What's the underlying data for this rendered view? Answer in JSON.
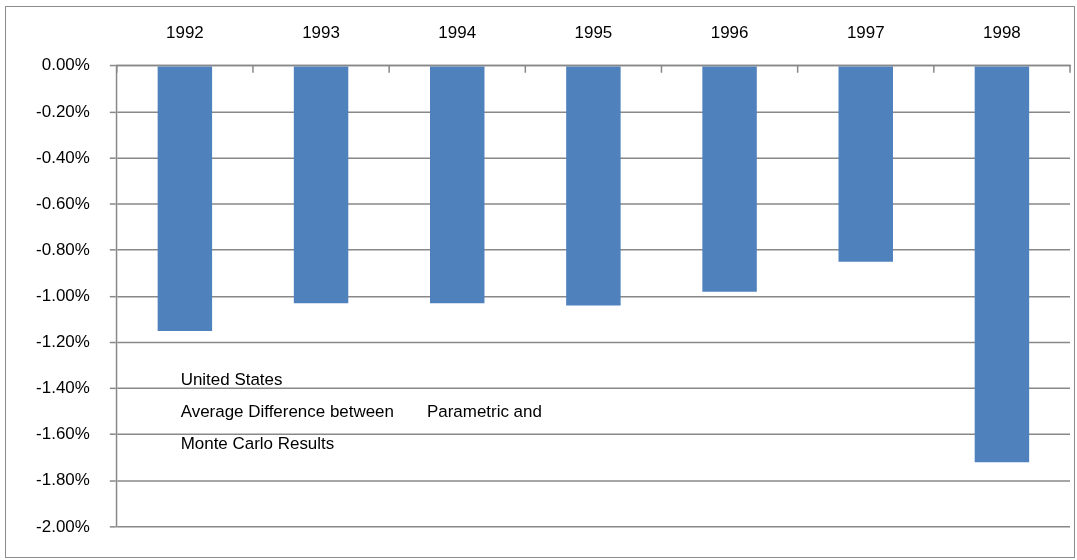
{
  "chart_data": {
    "type": "bar",
    "categories": [
      "1992",
      "1993",
      "1994",
      "1995",
      "1996",
      "1997",
      "1998"
    ],
    "values": [
      -1.15,
      -1.03,
      -1.03,
      -1.04,
      -0.98,
      -0.85,
      -1.72
    ],
    "color": "#4f81bd",
    "ylim": [
      -2,
      0
    ],
    "yticks": [
      {
        "value": 0,
        "label": "0.00%"
      },
      {
        "value": -0.2,
        "label": "-0.20%"
      },
      {
        "value": -0.4,
        "label": "-0.40%"
      },
      {
        "value": -0.6,
        "label": "-0.60%"
      },
      {
        "value": -0.8,
        "label": "-0.80%"
      },
      {
        "value": -1,
        "label": "-1.00%"
      },
      {
        "value": -1.2,
        "label": "-1.20%"
      },
      {
        "value": -1.4,
        "label": "-1.40%"
      },
      {
        "value": -1.6,
        "label": "-1.60%"
      },
      {
        "value": -1.8,
        "label": "-1.80%"
      },
      {
        "value": -2,
        "label": "-2.00%"
      }
    ],
    "grid": "y",
    "annotations": [
      "United States",
      "Average Difference between       Parametric and",
      "Monte Carlo Results"
    ]
  }
}
